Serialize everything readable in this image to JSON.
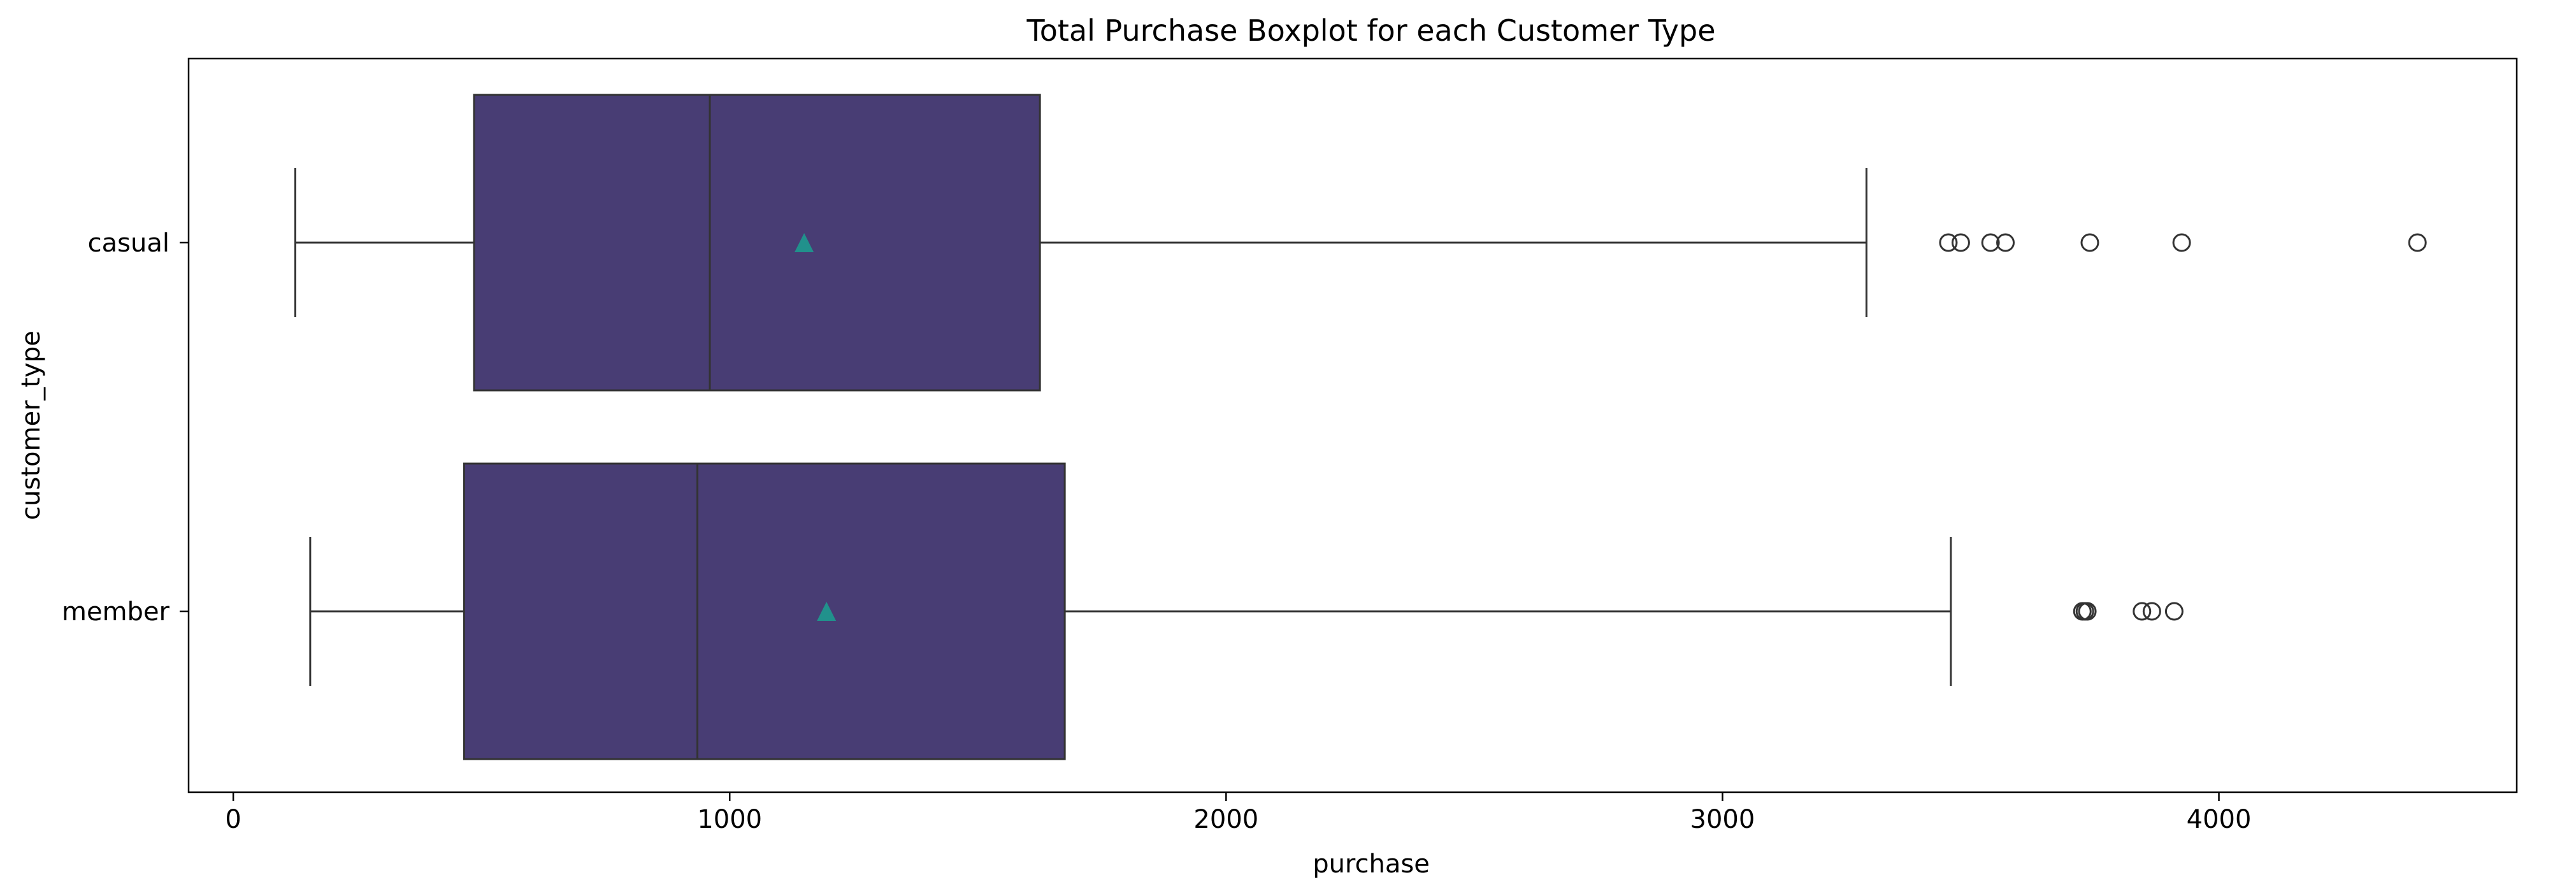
{
  "chart_data": {
    "type": "boxplot",
    "title": "Total Purchase Boxplot for each Customer Type",
    "xlabel": "purchase",
    "ylabel": "customer_type",
    "xlim": [
      -90,
      4600
    ],
    "xticks": [
      0,
      1000,
      2000,
      3000,
      4000
    ],
    "orientation": "horizontal",
    "box_color": "#483D74",
    "mean_marker_color": "#21918C",
    "line_color": "#333333",
    "grid": false,
    "legend": "none",
    "categories": [
      "casual",
      "member"
    ],
    "series": [
      {
        "category": "casual",
        "whisker_low": 125,
        "q1": 485,
        "median": 960,
        "q3": 1625,
        "whisker_high": 3290,
        "mean": 1150,
        "outliers": [
          3455,
          3480,
          3540,
          3570,
          3740,
          3925,
          4400
        ]
      },
      {
        "category": "member",
        "whisker_low": 155,
        "q1": 465,
        "median": 935,
        "q3": 1675,
        "whisker_high": 3460,
        "mean": 1195,
        "outliers": [
          3725,
          3730,
          3735,
          3845,
          3865,
          3910
        ]
      }
    ]
  }
}
